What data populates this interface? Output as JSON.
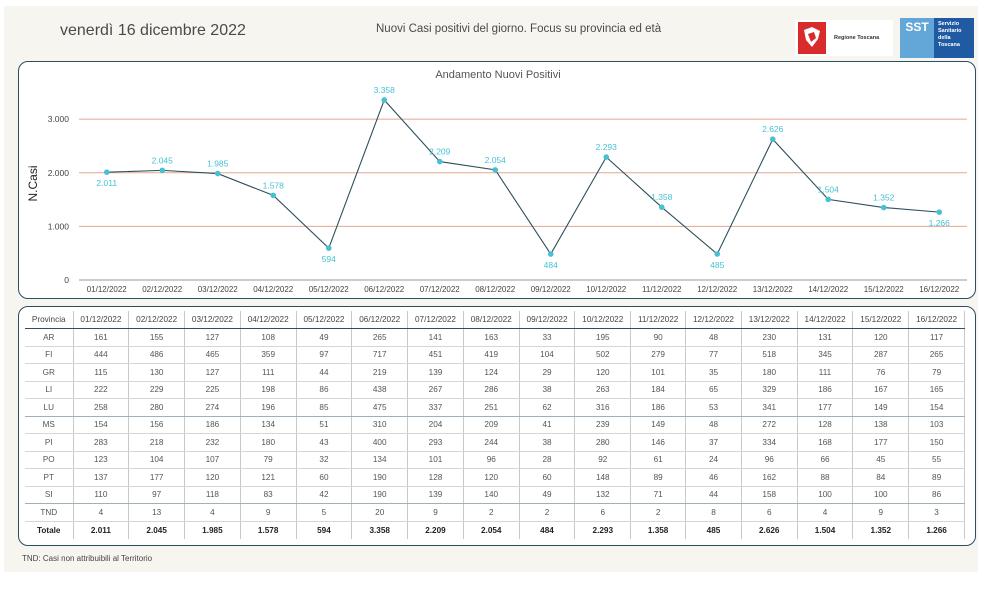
{
  "header": {
    "date": "venerdì 16 dicembre 2022",
    "subtitle": "Nuovi Casi positivi del giorno. Focus su provincia ed età",
    "logo_regione": "Regione Toscana",
    "logo_sst_mark": "SST",
    "logo_sst_text": [
      "Servizio",
      "Sanitario",
      "della",
      "Toscana"
    ]
  },
  "chart_data": {
    "type": "line",
    "title": "Andamento Nuovi Positivi",
    "xlabel": "",
    "ylabel": "N.Casi",
    "ylim": [
      0,
      3600
    ],
    "yticks": [
      0,
      1000,
      2000,
      3000
    ],
    "ytick_labels": [
      "0",
      "1.000",
      "2.000",
      "3.000"
    ],
    "grid": true,
    "colors": {
      "line": "#2c4f5c",
      "marker": "#46c1d4",
      "label": "#46c1d4",
      "grid": "#e2a88e"
    },
    "categories": [
      "01/12/2022",
      "02/12/2022",
      "03/12/2022",
      "04/12/2022",
      "05/12/2022",
      "06/12/2022",
      "07/12/2022",
      "08/12/2022",
      "09/12/2022",
      "10/12/2022",
      "11/12/2022",
      "12/12/2022",
      "13/12/2022",
      "14/12/2022",
      "15/12/2022",
      "16/12/2022"
    ],
    "values": [
      2011,
      2045,
      1985,
      1578,
      594,
      3358,
      2209,
      2054,
      484,
      2293,
      1358,
      485,
      2626,
      1504,
      1352,
      1266
    ],
    "value_labels": [
      "2.011",
      "2.045",
      "1.985",
      "1.578",
      "594",
      "3.358",
      "2.209",
      "2.054",
      "484",
      "2.293",
      "1.358",
      "485",
      "2.626",
      "1.504",
      "1.352",
      "1.266"
    ]
  },
  "table": {
    "corner": "Provincia",
    "columns": [
      "01/12/2022",
      "02/12/2022",
      "03/12/2022",
      "04/12/2022",
      "05/12/2022",
      "06/12/2022",
      "07/12/2022",
      "08/12/2022",
      "09/12/2022",
      "10/12/2022",
      "11/12/2022",
      "12/12/2022",
      "13/12/2022",
      "14/12/2022",
      "15/12/2022",
      "16/12/2022"
    ],
    "rows": [
      {
        "name": "AR",
        "values": [
          "161",
          "155",
          "127",
          "108",
          "49",
          "265",
          "141",
          "163",
          "33",
          "195",
          "90",
          "48",
          "230",
          "131",
          "120",
          "117"
        ]
      },
      {
        "name": "FI",
        "values": [
          "444",
          "486",
          "465",
          "359",
          "97",
          "717",
          "451",
          "419",
          "104",
          "502",
          "279",
          "77",
          "518",
          "345",
          "287",
          "265"
        ]
      },
      {
        "name": "GR",
        "values": [
          "115",
          "130",
          "127",
          "111",
          "44",
          "219",
          "139",
          "124",
          "29",
          "120",
          "101",
          "35",
          "180",
          "111",
          "76",
          "79"
        ]
      },
      {
        "name": "LI",
        "values": [
          "222",
          "229",
          "225",
          "198",
          "86",
          "438",
          "267",
          "286",
          "38",
          "263",
          "184",
          "65",
          "329",
          "186",
          "167",
          "165"
        ]
      },
      {
        "name": "LU",
        "values": [
          "258",
          "280",
          "274",
          "196",
          "85",
          "475",
          "337",
          "251",
          "62",
          "316",
          "186",
          "53",
          "341",
          "177",
          "149",
          "154"
        ]
      },
      {
        "name": "MS",
        "values": [
          "154",
          "156",
          "186",
          "134",
          "51",
          "310",
          "204",
          "209",
          "41",
          "239",
          "149",
          "48",
          "272",
          "128",
          "138",
          "103"
        ]
      },
      {
        "name": "PI",
        "values": [
          "283",
          "218",
          "232",
          "180",
          "43",
          "400",
          "293",
          "244",
          "38",
          "280",
          "146",
          "37",
          "334",
          "168",
          "177",
          "150"
        ]
      },
      {
        "name": "PO",
        "values": [
          "123",
          "104",
          "107",
          "79",
          "32",
          "134",
          "101",
          "96",
          "28",
          "92",
          "61",
          "24",
          "96",
          "66",
          "45",
          "55"
        ]
      },
      {
        "name": "PT",
        "values": [
          "137",
          "177",
          "120",
          "121",
          "60",
          "190",
          "128",
          "120",
          "60",
          "148",
          "89",
          "46",
          "162",
          "88",
          "84",
          "89"
        ]
      },
      {
        "name": "SI",
        "values": [
          "110",
          "97",
          "118",
          "83",
          "42",
          "190",
          "139",
          "140",
          "49",
          "132",
          "71",
          "44",
          "158",
          "100",
          "100",
          "86"
        ]
      },
      {
        "name": "TND",
        "values": [
          "4",
          "13",
          "4",
          "9",
          "5",
          "20",
          "9",
          "2",
          "2",
          "6",
          "2",
          "8",
          "6",
          "4",
          "9",
          "3"
        ]
      }
    ],
    "total": {
      "name": "Totale",
      "values": [
        "2.011",
        "2.045",
        "1.985",
        "1.578",
        "594",
        "3.358",
        "2.209",
        "2.054",
        "484",
        "2.293",
        "1.358",
        "485",
        "2.626",
        "1.504",
        "1.352",
        "1.266"
      ]
    }
  },
  "footnote": "TND:  Casi non attribuibili al Territorio"
}
